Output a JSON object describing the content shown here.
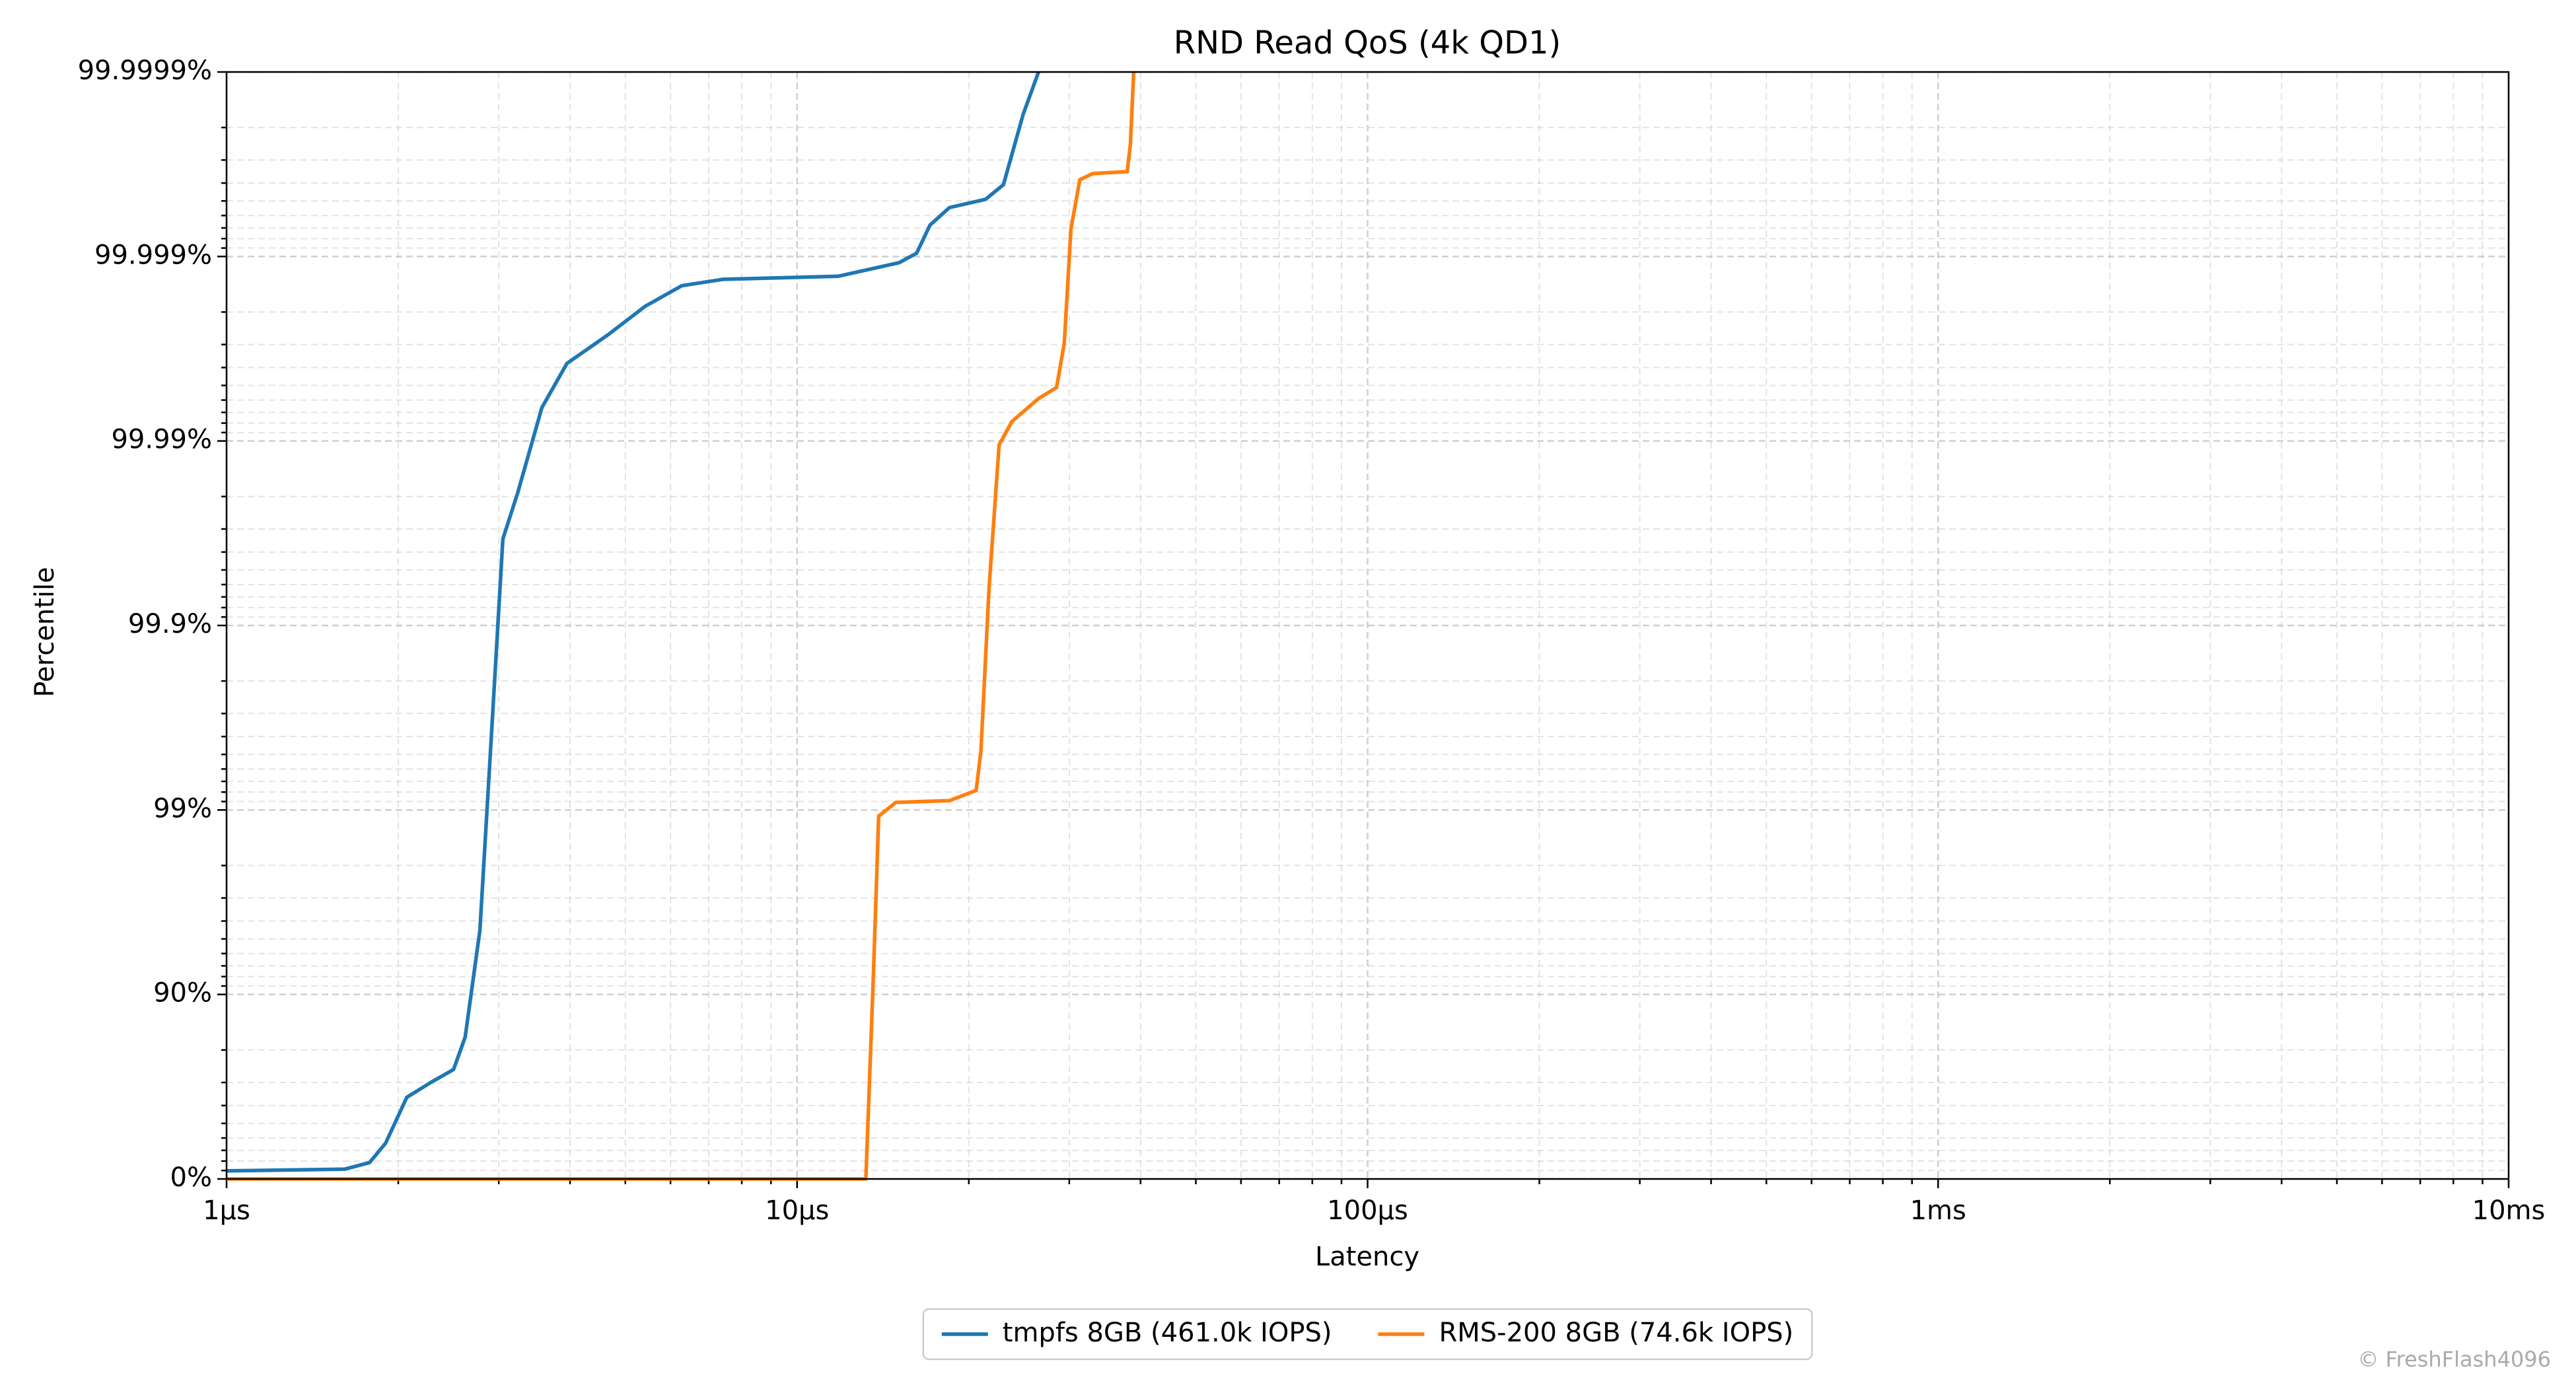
{
  "chart_data": {
    "type": "line",
    "title": "RND Read QoS (4k QD1)",
    "x_label": "Latency",
    "y_label": "Percentile",
    "watermark": "© FreshFlash4096",
    "xscale": "log",
    "yscale": "nines",
    "grid": true,
    "minor_grid": true,
    "legend": "bottom",
    "xlim": [
      1,
      10000
    ],
    "xticks": [
      {
        "value": 1,
        "label": "1µs"
      },
      {
        "value": 10,
        "label": "10µs"
      },
      {
        "value": 100,
        "label": "100µs"
      },
      {
        "value": 1000,
        "label": "1ms"
      },
      {
        "value": 10000,
        "label": "10ms"
      }
    ],
    "ylim": [
      0,
      99.9999
    ],
    "yticks": [
      {
        "value": 0,
        "label": "0%"
      },
      {
        "value": 90,
        "label": "90%"
      },
      {
        "value": 99,
        "label": "99%"
      },
      {
        "value": 99.9,
        "label": "99.9%"
      },
      {
        "value": 99.99,
        "label": "99.99%"
      },
      {
        "value": 99.999,
        "label": "99.999%"
      },
      {
        "value": 99.9999,
        "label": "99.9999%"
      }
    ],
    "series": [
      {
        "name": "tmpfs 8GB (461.0k IOPS)",
        "color": "#1f77b4",
        "x": [
          1,
          1.61,
          1.78,
          1.9,
          2.07,
          2.28,
          2.5,
          2.62,
          2.78,
          2.89,
          2.97,
          3.05,
          3.24,
          3.57,
          3.95,
          4.66,
          5.42,
          6.28,
          7.41,
          11.8,
          15.1,
          16.2,
          17.1,
          18.5,
          21.4,
          23.0,
          24.9,
          26.5
        ],
        "values": [
          9.6,
          11.5,
          18.4,
          36,
          63.9,
          70,
          74.5,
          83,
          95.5,
          99.41,
          99.86,
          99.966,
          99.981,
          99.9934,
          99.9962,
          99.99734,
          99.99814,
          99.99856,
          99.99867,
          99.99872,
          99.99892,
          99.99904,
          99.999324,
          99.999457,
          99.99951,
          99.999592,
          99.99983,
          99.9999
        ]
      },
      {
        "name": "RMS-200 8GB (74.6k IOPS)",
        "color": "#ff7f0e",
        "x": [
          1,
          13.2,
          13.6,
          13.9,
          14.9,
          18.5,
          20.6,
          21.0,
          21.7,
          22.6,
          23.8,
          26.5,
          28.5,
          29.4,
          30.2,
          31.3,
          33.0,
          37.9,
          38.4,
          38.9
        ],
        "values": [
          0,
          0,
          91.7,
          98.92,
          99.09,
          99.11,
          99.216,
          99.52,
          99.937,
          99.9895,
          99.99216,
          99.99411,
          99.99487,
          99.99705,
          99.99929,
          99.999616,
          99.999645,
          99.999653,
          99.999755,
          99.9999
        ]
      }
    ]
  }
}
